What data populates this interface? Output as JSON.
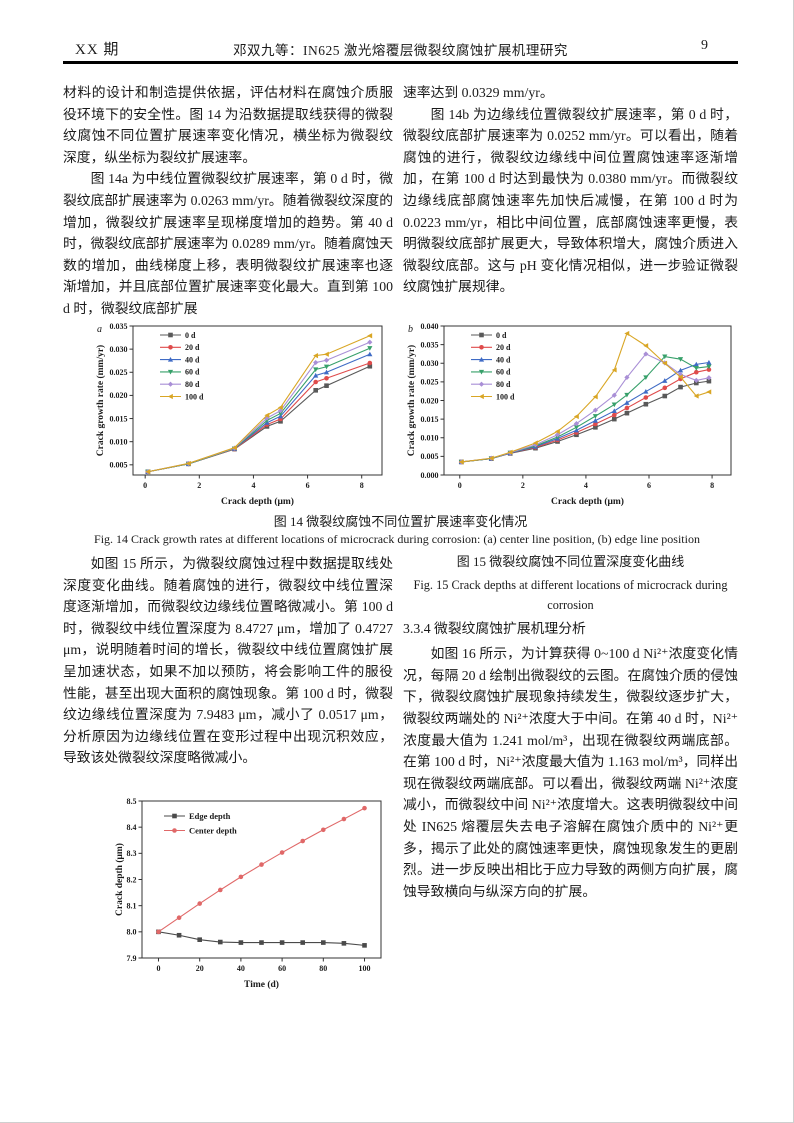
{
  "header": {
    "journal_issue": "XX 期",
    "running_title": "邓双九等：IN625 激光熔覆层微裂纹腐蚀扩展机理研究",
    "page_number": "9"
  },
  "left_column": {
    "p1": "材料的设计和制造提供依据，评估材料在腐蚀介质服役环境下的安全性。图 14 为沿数据提取线获得的微裂纹腐蚀不同位置扩展速率变化情况，横坐标为微裂纹深度，纵坐标为裂纹扩展速率。",
    "p2": "图 14a 为中线位置微裂纹扩展速率，第 0 d 时，微裂纹底部扩展速率为 0.0263 mm/yr。随着微裂纹深度的增加，微裂纹扩展速率呈现梯度增加的趋势。第 40 d 时，微裂纹底部扩展速率为 0.0289 mm/yr。随着腐蚀天数的增加，曲线梯度上移，表明微裂纹扩展速率也逐渐增加，并且底部位置扩展速率变化最大。直到第 100 d 时，微裂纹底部扩展",
    "p3": "如图 15 所示，为微裂纹腐蚀过程中数据提取线处深度变化曲线。随着腐蚀的进行，微裂纹中线位置深度逐渐增加，而微裂纹边缘线位置略微减小。第 100 d 时，微裂纹中线位置深度为 8.4727 μm，增加了 0.4727 μm，说明随着时间的增长，微裂纹中线位置腐蚀扩展呈加速状态，如果不加以预防，将会影响工件的服役性能，甚至出现大面积的腐蚀现象。第 100 d 时，微裂纹边缘线位置深度为 7.9483 μm，减小了 0.0517 μm，分析原因为边缘线位置在变形过程中出现沉积效应，导致该处微裂纹深度略微减小。"
  },
  "right_column": {
    "p1": "速率达到 0.0329 mm/yr。",
    "p2": "图 14b 为边缘线位置微裂纹扩展速率，第 0 d 时，微裂纹底部扩展速率为 0.0252 mm/yr。可以看出，随着腐蚀的进行，微裂纹边缘线中间位置腐蚀速率逐渐增加，在第 100 d 时达到最快为 0.0380 mm/yr。而微裂纹边缘线底部腐蚀速率先加快后减慢，在第 100 d 时为 0.0223 mm/yr，相比中间位置，底部腐蚀速率更慢，表明微裂纹底部扩展更大，导致体积增大，腐蚀介质进入微裂纹底部。这与 pH 变化情况相似，进一步验证微裂纹腐蚀扩展规律。",
    "p3": "如图 16 所示，为计算获得 0~100 d Ni²⁺浓度变化情况，每隔 20 d 绘制出微裂纹的云图。在腐蚀介质的侵蚀下，微裂纹腐蚀扩展现象持续发生，微裂纹逐步扩大，微裂纹两端处的 Ni²⁺浓度大于中间。在第 40 d 时，Ni²⁺浓度最大值为 1.241 mol/m³，出现在微裂纹两端底部。在第 100 d 时，Ni²⁺浓度最大值为 1.163 mol/m³，同样出现在微裂纹两端底部。可以看出，微裂纹两端 Ni²⁺浓度减小，而微裂纹中间 Ni²⁺浓度增大。这表明微裂纹中间处 IN625 熔覆层失去电子溶解在腐蚀介质中的 Ni²⁺更多，揭示了此处的腐蚀速率更快，腐蚀现象发生的更剧烈。进一步反映出相比于应力导致的两侧方向扩展，腐蚀导致横向与纵深方向的扩展。"
  },
  "figure14": {
    "caption_cn": "图 14 微裂纹腐蚀不同位置扩展速率变化情况",
    "caption_en": "Fig. 14 Crack growth rates at different locations of microcrack during corrosion: (a) center line position, (b) edge line position"
  },
  "figure15": {
    "caption_cn": "图 15 微裂纹腐蚀不同位置深度变化曲线",
    "caption_en": "Fig. 15 Crack depths at different locations of microcrack during corrosion"
  },
  "section": {
    "heading": "3.3.4 微裂纹腐蚀扩展机理分析"
  },
  "chart_data": [
    {
      "id": "fig14a",
      "type": "line",
      "corner_label": "a",
      "title": "",
      "xlabel": "Crack depth (μm)",
      "ylabel": "Crack growth rate (mm/yr)",
      "xlim": [
        -0.45,
        8.75
      ],
      "ylim": [
        0.0028,
        0.035
      ],
      "xticks": [
        0,
        2,
        4,
        6,
        8
      ],
      "yticks": [
        0.005,
        0.01,
        0.015,
        0.02,
        0.025,
        0.03,
        0.035
      ],
      "ydecimals": 3,
      "grid": false,
      "legend_position": "top-left",
      "x": [
        0.1,
        1.6,
        3.3,
        4.5,
        5.0,
        6.3,
        6.7,
        8.3
      ],
      "series": [
        {
          "name": "0 d",
          "color": "#595959",
          "marker": "square",
          "values": [
            0.0035,
            0.0052,
            0.0084,
            0.0133,
            0.0144,
            0.0211,
            0.0221,
            0.0263
          ]
        },
        {
          "name": "20 d",
          "color": "#df4b4b",
          "marker": "circle",
          "values": [
            0.0035,
            0.0052,
            0.0084,
            0.0137,
            0.0149,
            0.0229,
            0.0237,
            0.027
          ]
        },
        {
          "name": "40 d",
          "color": "#3f6bc5",
          "marker": "triangle-up",
          "values": [
            0.0035,
            0.0052,
            0.0085,
            0.0141,
            0.0155,
            0.0243,
            0.025,
            0.0289
          ]
        },
        {
          "name": "60 d",
          "color": "#37a06a",
          "marker": "triangle-down",
          "values": [
            0.0035,
            0.0052,
            0.0085,
            0.0146,
            0.0161,
            0.0256,
            0.0262,
            0.0302
          ]
        },
        {
          "name": "80 d",
          "color": "#a98fd6",
          "marker": "diamond",
          "values": [
            0.0035,
            0.0053,
            0.0086,
            0.0151,
            0.0167,
            0.0271,
            0.0276,
            0.0315
          ]
        },
        {
          "name": "100 d",
          "color": "#d9a625",
          "marker": "triangle-left",
          "values": [
            0.0035,
            0.0053,
            0.0087,
            0.0157,
            0.0174,
            0.0286,
            0.0289,
            0.0329
          ]
        }
      ]
    },
    {
      "id": "fig14b",
      "type": "line",
      "corner_label": "b",
      "title": "",
      "xlabel": "Crack depth (μm)",
      "ylabel": "Crack growth rate (mm/yr)",
      "xlim": [
        -0.5,
        8.6
      ],
      "ylim": [
        0.0,
        0.04
      ],
      "xticks": [
        0,
        2,
        4,
        6,
        8
      ],
      "yticks": [
        0.0,
        0.005,
        0.01,
        0.015,
        0.02,
        0.025,
        0.03,
        0.035,
        0.04
      ],
      "ydecimals": 3,
      "grid": false,
      "legend_position": "top-left",
      "x": [
        0.05,
        1.0,
        1.6,
        2.4,
        3.1,
        3.7,
        4.3,
        4.9,
        5.3,
        5.9,
        6.5,
        7.0,
        7.5,
        7.9
      ],
      "series": [
        {
          "name": "0 d",
          "color": "#595959",
          "marker": "square",
          "values": [
            0.0035,
            0.0044,
            0.0058,
            0.0072,
            0.009,
            0.0108,
            0.0128,
            0.015,
            0.0166,
            0.019,
            0.0212,
            0.0236,
            0.0247,
            0.0252
          ]
        },
        {
          "name": "20 d",
          "color": "#df4b4b",
          "marker": "circle",
          "values": [
            0.0035,
            0.0044,
            0.0059,
            0.0074,
            0.0094,
            0.0114,
            0.0137,
            0.0161,
            0.018,
            0.0208,
            0.0234,
            0.0258,
            0.0276,
            0.0283
          ]
        },
        {
          "name": "40 d",
          "color": "#3f6bc5",
          "marker": "triangle-up",
          "values": [
            0.0035,
            0.0044,
            0.0059,
            0.0076,
            0.0098,
            0.012,
            0.0146,
            0.0172,
            0.0194,
            0.0224,
            0.0253,
            0.0281,
            0.0297,
            0.0302
          ]
        },
        {
          "name": "60 d",
          "color": "#37a06a",
          "marker": "triangle-down",
          "values": [
            0.0035,
            0.0044,
            0.006,
            0.0078,
            0.0102,
            0.0128,
            0.0158,
            0.0189,
            0.0215,
            0.0262,
            0.0318,
            0.0311,
            0.0287,
            0.0291
          ]
        },
        {
          "name": "80 d",
          "color": "#a98fd6",
          "marker": "diamond",
          "values": [
            0.0035,
            0.0045,
            0.006,
            0.0081,
            0.0108,
            0.0138,
            0.0174,
            0.0214,
            0.0262,
            0.0325,
            0.0301,
            0.027,
            0.0254,
            0.0261
          ]
        },
        {
          "name": "100 d",
          "color": "#d9a625",
          "marker": "triangle-left",
          "values": [
            0.0035,
            0.0045,
            0.0061,
            0.0086,
            0.0117,
            0.0157,
            0.021,
            0.0282,
            0.038,
            0.0347,
            0.03,
            0.0263,
            0.0212,
            0.0223
          ]
        }
      ]
    },
    {
      "id": "fig15",
      "type": "line",
      "corner_label": "",
      "title": "",
      "xlabel": "Time (d)",
      "ylabel": "Crack depth (μm)",
      "xlim": [
        -8,
        108
      ],
      "ylim": [
        7.9,
        8.5
      ],
      "xticks": [
        0,
        20,
        40,
        60,
        80,
        100
      ],
      "yticks": [
        7.9,
        8.0,
        8.1,
        8.2,
        8.3,
        8.4,
        8.5
      ],
      "ydecimals": 1,
      "grid": false,
      "legend_position": "top-left",
      "x": [
        0,
        10,
        20,
        30,
        40,
        50,
        60,
        70,
        80,
        90,
        100
      ],
      "series": [
        {
          "name": "Edge depth",
          "color": "#4a4a4a",
          "marker": "square",
          "values": [
            8.0,
            7.987,
            7.97,
            7.961,
            7.959,
            7.959,
            7.959,
            7.959,
            7.959,
            7.956,
            7.9483
          ]
        },
        {
          "name": "Center depth",
          "color": "#e06868",
          "marker": "circle",
          "values": [
            8.0,
            8.054,
            8.108,
            8.16,
            8.21,
            8.257,
            8.303,
            8.347,
            8.39,
            8.431,
            8.4727
          ]
        }
      ]
    }
  ]
}
